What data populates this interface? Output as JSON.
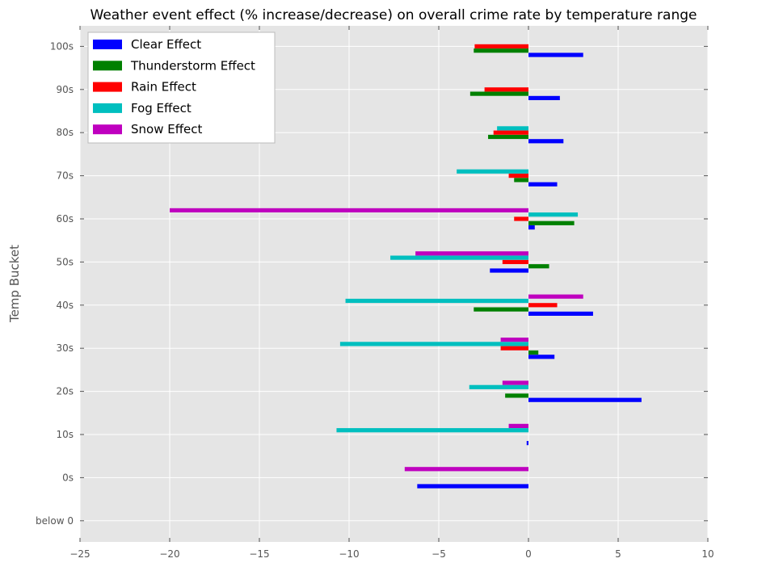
{
  "chart_data": {
    "type": "bar",
    "orientation": "horizontal",
    "title": "Weather event effect (% increase/decrease) on overall crime rate by temperature range",
    "xlabel": "",
    "ylabel": "Temp Bucket",
    "categories": [
      "below 0",
      "0s",
      "10s",
      "20s",
      "30s",
      "40s",
      "50s",
      "60s",
      "70s",
      "80s",
      "90s",
      "100s"
    ],
    "xlim": [
      -25,
      10
    ],
    "xticks": [
      -25,
      -20,
      -15,
      -10,
      -5,
      0,
      5,
      10
    ],
    "xtick_labels": [
      "−25",
      "−20",
      "−15",
      "−10",
      "−5",
      "0",
      "5",
      "10"
    ],
    "grid": true,
    "legend_position": "top-left",
    "series": [
      {
        "name": "Clear Effect",
        "color": "#0000ff",
        "values": [
          0,
          -6.2,
          -0.1,
          6.3,
          1.45,
          3.6,
          -2.15,
          0.35,
          1.6,
          1.95,
          1.75,
          3.05
        ]
      },
      {
        "name": "Thunderstorm Effect",
        "color": "#008000",
        "values": [
          0,
          0,
          0,
          -1.3,
          0.55,
          -3.05,
          1.15,
          2.55,
          -0.8,
          -2.25,
          -3.25,
          -3.05
        ]
      },
      {
        "name": "Rain Effect",
        "color": "#ff0000",
        "values": [
          0,
          0,
          0,
          0,
          -1.55,
          1.6,
          -1.45,
          -0.8,
          -1.1,
          -1.95,
          -2.45,
          -3.0
        ]
      },
      {
        "name": "Fog Effect",
        "color": "#00bfbf",
        "values": [
          0,
          0,
          -10.7,
          -3.3,
          -10.5,
          -10.2,
          -7.7,
          2.75,
          -4.0,
          -1.75,
          0,
          0
        ]
      },
      {
        "name": "Snow Effect",
        "color": "#bf00bf",
        "values": [
          0,
          -6.9,
          -1.1,
          -1.45,
          -1.55,
          3.05,
          -6.3,
          -20.0,
          0,
          0,
          0,
          0
        ]
      }
    ]
  },
  "colors": {
    "plot_background": "#e5e5e5",
    "grid": "#ffffff",
    "tick": "#555555"
  }
}
